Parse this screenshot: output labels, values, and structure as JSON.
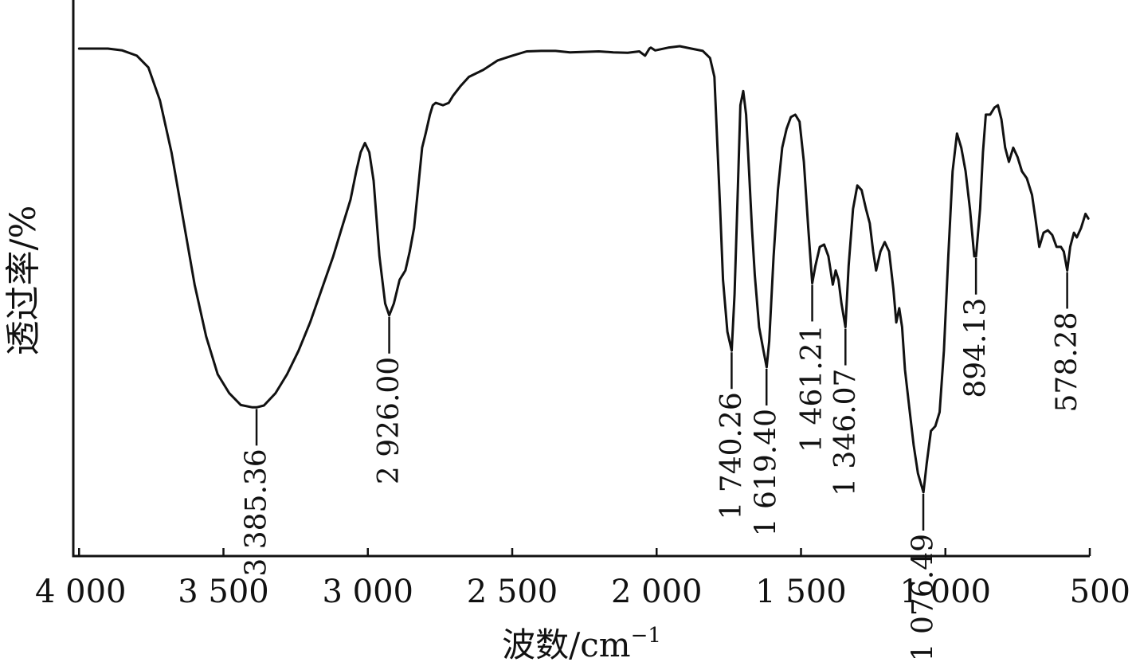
{
  "chart_data": {
    "type": "line",
    "title": "",
    "xlabel": "波数/cm",
    "xlabel_sup": "−1",
    "ylabel": "透过率/%",
    "xlim": [
      4020,
      500
    ],
    "x_reversed": true,
    "y_ticks_shown": false,
    "grid": false,
    "line_color": "#111111",
    "x_ticks": [
      {
        "value": 4000,
        "label": "4 000"
      },
      {
        "value": 3500,
        "label": "3 500"
      },
      {
        "value": 3000,
        "label": "3 000"
      },
      {
        "value": 2500,
        "label": "2 500"
      },
      {
        "value": 2000,
        "label": "2 000"
      },
      {
        "value": 1500,
        "label": "1 500"
      },
      {
        "value": 1000,
        "label": "1 000"
      },
      {
        "value": 500,
        "label": "500"
      }
    ],
    "series": [
      {
        "points": [
          [
            4000,
            94
          ],
          [
            3900,
            94
          ],
          [
            3850,
            93.6
          ],
          [
            3800,
            92.5
          ],
          [
            3760,
            90
          ],
          [
            3720,
            83
          ],
          [
            3680,
            72
          ],
          [
            3640,
            58
          ],
          [
            3600,
            44
          ],
          [
            3560,
            33
          ],
          [
            3520,
            25
          ],
          [
            3480,
            21
          ],
          [
            3440,
            18.5
          ],
          [
            3400,
            18
          ],
          [
            3385,
            18
          ],
          [
            3360,
            18.4
          ],
          [
            3320,
            21
          ],
          [
            3280,
            25
          ],
          [
            3240,
            30
          ],
          [
            3200,
            36
          ],
          [
            3160,
            43
          ],
          [
            3120,
            50
          ],
          [
            3090,
            56
          ],
          [
            3060,
            62
          ],
          [
            3040,
            68
          ],
          [
            3025,
            72
          ],
          [
            3010,
            74
          ],
          [
            2995,
            72
          ],
          [
            2980,
            66
          ],
          [
            2960,
            50
          ],
          [
            2940,
            40
          ],
          [
            2926,
            37.5
          ],
          [
            2910,
            40
          ],
          [
            2890,
            45
          ],
          [
            2870,
            47
          ],
          [
            2855,
            51
          ],
          [
            2840,
            56
          ],
          [
            2825,
            65
          ],
          [
            2812,
            73
          ],
          [
            2800,
            76
          ],
          [
            2785,
            80
          ],
          [
            2775,
            82
          ],
          [
            2765,
            82.5
          ],
          [
            2740,
            82
          ],
          [
            2720,
            82.5
          ],
          [
            2705,
            84
          ],
          [
            2680,
            86
          ],
          [
            2650,
            88
          ],
          [
            2600,
            89.5
          ],
          [
            2550,
            91.5
          ],
          [
            2500,
            92.5
          ],
          [
            2450,
            93.4
          ],
          [
            2400,
            93.5
          ],
          [
            2350,
            93.5
          ],
          [
            2300,
            93.2
          ],
          [
            2250,
            93.3
          ],
          [
            2200,
            93.4
          ],
          [
            2150,
            93.2
          ],
          [
            2100,
            93.1
          ],
          [
            2060,
            93.4
          ],
          [
            2040,
            92.5
          ],
          [
            2025,
            94
          ],
          [
            2020,
            94.2
          ],
          [
            2005,
            93.6
          ],
          [
            1960,
            94.2
          ],
          [
            1920,
            94.5
          ],
          [
            1880,
            94
          ],
          [
            1840,
            93.5
          ],
          [
            1815,
            92
          ],
          [
            1800,
            88
          ],
          [
            1790,
            74
          ],
          [
            1780,
            60
          ],
          [
            1770,
            45
          ],
          [
            1755,
            34
          ],
          [
            1740,
            30
          ],
          [
            1730,
            42
          ],
          [
            1720,
            62
          ],
          [
            1710,
            82
          ],
          [
            1700,
            85
          ],
          [
            1690,
            80
          ],
          [
            1680,
            68
          ],
          [
            1670,
            56
          ],
          [
            1660,
            46
          ],
          [
            1645,
            35
          ],
          [
            1630,
            30
          ],
          [
            1619,
            26.5
          ],
          [
            1610,
            32
          ],
          [
            1595,
            50
          ],
          [
            1580,
            64
          ],
          [
            1565,
            73
          ],
          [
            1550,
            77
          ],
          [
            1535,
            79.5
          ],
          [
            1520,
            80
          ],
          [
            1505,
            78.5
          ],
          [
            1490,
            70
          ],
          [
            1475,
            56
          ],
          [
            1461,
            44.3
          ],
          [
            1450,
            48
          ],
          [
            1435,
            52
          ],
          [
            1420,
            52.5
          ],
          [
            1405,
            50
          ],
          [
            1390,
            44
          ],
          [
            1380,
            47
          ],
          [
            1370,
            45
          ],
          [
            1360,
            40
          ],
          [
            1346,
            35
          ],
          [
            1335,
            48
          ],
          [
            1320,
            60
          ],
          [
            1305,
            65
          ],
          [
            1290,
            64
          ],
          [
            1275,
            60
          ],
          [
            1262,
            57
          ],
          [
            1250,
            51
          ],
          [
            1240,
            47
          ],
          [
            1225,
            51
          ],
          [
            1210,
            53
          ],
          [
            1195,
            51
          ],
          [
            1180,
            43
          ],
          [
            1170,
            36
          ],
          [
            1160,
            39
          ],
          [
            1150,
            35
          ],
          [
            1140,
            26
          ],
          [
            1125,
            18
          ],
          [
            1110,
            10
          ],
          [
            1095,
            4
          ],
          [
            1076,
            0
          ],
          [
            1065,
            6
          ],
          [
            1050,
            13
          ],
          [
            1035,
            14
          ],
          [
            1020,
            17
          ],
          [
            1005,
            30
          ],
          [
            990,
            50
          ],
          [
            975,
            68
          ],
          [
            960,
            76
          ],
          [
            945,
            73
          ],
          [
            930,
            68
          ],
          [
            915,
            60
          ],
          [
            900,
            50
          ],
          [
            894,
            50
          ],
          [
            880,
            60
          ],
          [
            870,
            72
          ],
          [
            860,
            80
          ],
          [
            845,
            80
          ],
          [
            830,
            81.5
          ],
          [
            818,
            82
          ],
          [
            806,
            79
          ],
          [
            793,
            73
          ],
          [
            780,
            70
          ],
          [
            765,
            73
          ],
          [
            750,
            71
          ],
          [
            735,
            68
          ],
          [
            718,
            66.5
          ],
          [
            700,
            63
          ],
          [
            688,
            58
          ],
          [
            675,
            52
          ],
          [
            660,
            55
          ],
          [
            645,
            55.5
          ],
          [
            630,
            54.5
          ],
          [
            615,
            52
          ],
          [
            600,
            52
          ],
          [
            590,
            51
          ],
          [
            578,
            47
          ],
          [
            568,
            52
          ],
          [
            555,
            55
          ],
          [
            545,
            54
          ],
          [
            530,
            56
          ],
          [
            515,
            59
          ],
          [
            505,
            58
          ]
        ]
      }
    ],
    "peaks": [
      {
        "x": 3385.36,
        "label": "3 385.36",
        "y": 18
      },
      {
        "x": 2926.0,
        "label": "2 926.00",
        "y": 37.5
      },
      {
        "x": 1740.26,
        "label": "1 740.26",
        "y": 30
      },
      {
        "x": 1619.4,
        "label": "1 619.40",
        "y": 26.5
      },
      {
        "x": 1461.21,
        "label": "1 461.21",
        "y": 44.3
      },
      {
        "x": 1346.07,
        "label": "1 346.07",
        "y": 35
      },
      {
        "x": 1076.49,
        "label": "1 076.49",
        "y": 0
      },
      {
        "x": 894.13,
        "label": "894.13",
        "y": 50
      },
      {
        "x": 578.28,
        "label": "578.28",
        "y": 47
      }
    ]
  }
}
